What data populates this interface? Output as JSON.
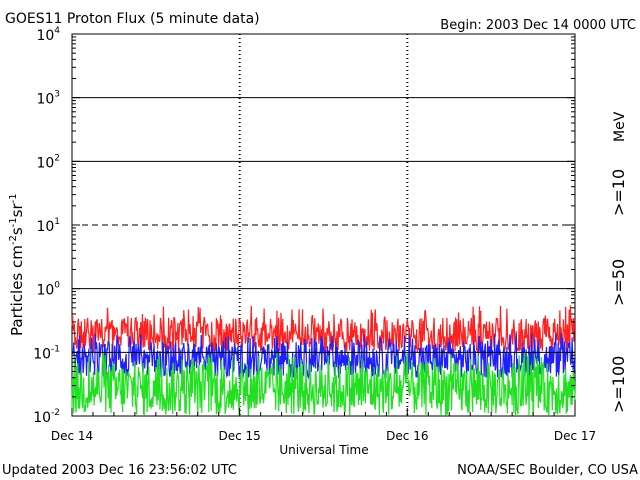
{
  "chart_data": {
    "type": "line",
    "title": "GOES11 Proton Flux (5 minute data)",
    "begin_label": "Begin: 2003 Dec 14 0000 UTC",
    "xlabel": "Universal Time",
    "ylabel_main": "Particles cm",
    "ylabel_sup1": "-2",
    "ylabel_mid1": "s",
    "ylabel_sup2": "-1",
    "ylabel_mid2": "sr",
    "ylabel_sup3": "-1",
    "y_scale": "log",
    "ylim": [
      0.01,
      10000
    ],
    "y_ticks": [
      {
        "value": 0.01,
        "base": "10",
        "exp": "-2"
      },
      {
        "value": 0.1,
        "base": "10",
        "exp": "-1"
      },
      {
        "value": 1,
        "base": "10",
        "exp": "0"
      },
      {
        "value": 10,
        "base": "10",
        "exp": "1"
      },
      {
        "value": 100,
        "base": "10",
        "exp": "2"
      },
      {
        "value": 1000,
        "base": "10",
        "exp": "3"
      },
      {
        "value": 10000,
        "base": "10",
        "exp": "4"
      }
    ],
    "x_ticks": [
      "Dec 14",
      "Dec 15",
      "Dec 16",
      "Dec 17"
    ],
    "xlim_days": [
      0,
      3
    ],
    "threshold_lines": [
      {
        "value": 1000,
        "style": "solid"
      },
      {
        "value": 100,
        "style": "solid"
      },
      {
        "value": 10,
        "style": "dashed"
      },
      {
        "value": 1,
        "style": "solid"
      },
      {
        "value": 0.1,
        "style": "solid"
      }
    ],
    "legend_unit": "MeV",
    "series": [
      {
        "name": ">=10",
        "color": "#ff2020",
        "typical_range": [
          0.1,
          0.35
        ],
        "peak": 0.55
      },
      {
        "name": ">=50",
        "color": "#2020ff",
        "typical_range": [
          0.04,
          0.15
        ],
        "peak": 0.2
      },
      {
        "name": ">=100",
        "color": "#20e020",
        "typical_range": [
          0.01,
          0.07
        ],
        "peak": 0.1
      }
    ]
  },
  "footer": {
    "updated": "Updated 2003 Dec 16 23:56:02 UTC",
    "source": "NOAA/SEC Boulder, CO USA"
  }
}
